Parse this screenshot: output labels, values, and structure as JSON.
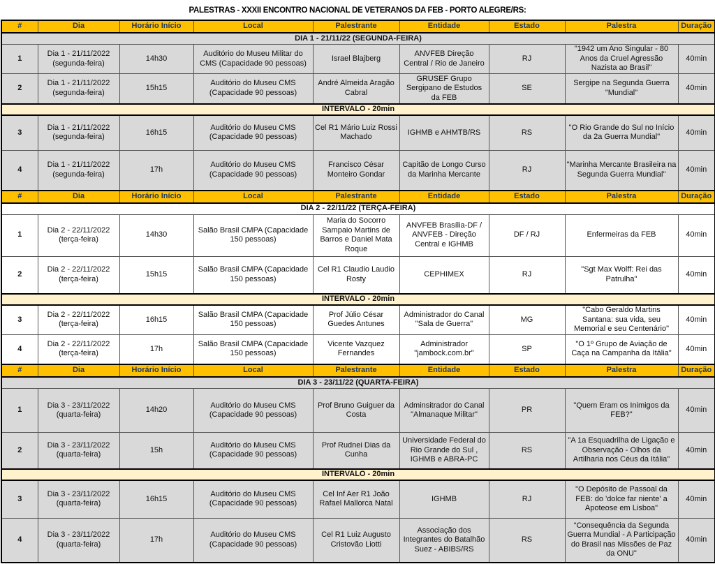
{
  "title": "PALESTRAS - XXXII ENCONTRO NACIONAL DE VETERANOS DA FEB - PORTO ALEGRE/RS:",
  "headers": [
    "#",
    "Dia",
    "Horário Início",
    "Local",
    "Palestrante",
    "Entidade",
    "Estado",
    "Palestra",
    "Duração"
  ],
  "interval_label": "INTERVALO - 20min",
  "colors": {
    "header_bg": "#ffc000",
    "header_text": "#1f3864",
    "interval_bg": "#fff2cc",
    "row_gray": "#d9d9d9"
  },
  "days": [
    {
      "label": "DIA 1 - 21/11/22 (SEGUNDA-FEIRA)",
      "shade": "gray",
      "rows": [
        [
          "1",
          "Dia 1 - 21/11/2022\n(segunda-feira)",
          "14h30",
          "Auditório do Museu Militar do CMS (Capacidade 90 pessoas)",
          "Israel Blajberg",
          "ANVFEB Direção Central / Rio de Janeiro",
          "RJ",
          "\"1942 um Ano Singular - 80 Anos da Cruel Agressão Nazista ao Brasil\"",
          "40min"
        ],
        [
          "2",
          "Dia 1 - 21/11/2022\n(segunda-feira)",
          "15h15",
          "Auditório do Museu CMS (Capacidade 90 pessoas)",
          "André Almeida Aragão Cabral",
          "GRUSEF Grupo Sergipano de Estudos da FEB",
          "SE",
          "Sergipe na Segunda Guerra \"Mundial\"",
          "40min"
        ],
        [
          "3",
          "Dia 1 - 21/11/2022\n(segunda-feira)",
          "16h15",
          "Auditório do Museu CMS (Capacidade 90 pessoas)",
          "Cel R1 Mário Luiz Rossi Machado",
          "IGHMB e AHMTB/RS",
          "RS",
          "\"O Rio Grande do Sul no Início da 2a Guerra Mundial\"",
          "40min"
        ],
        [
          "4",
          "Dia 1 - 21/11/2022\n(segunda-feira)",
          "17h",
          "Auditório do Museu CMS (Capacidade 90 pessoas)",
          "Francisco César Monteiro Gondar",
          "Capitão de Longo Curso da Marinha Mercante",
          "RJ",
          "\"Marinha Mercante Brasileira na Segunda Guerra Mundial\"",
          "40min"
        ]
      ]
    },
    {
      "label": "DIA 2 - 22/11/22 (TERÇA-FEIRA)",
      "shade": "white",
      "rows": [
        [
          "1",
          "Dia 2 - 22/11/2022\n(terça-feira)",
          "14h30",
          "Salão Brasil CMPA (Capacidade 150 pessoas)",
          "Maria do Socorro Sampaio Martins de Barros e Daniel Mata Roque",
          "ANVFEB Brasília-DF / ANVFEB - Direção Central e IGHMB",
          "DF / RJ",
          "Enfermeiras da FEB",
          "40min"
        ],
        [
          "2",
          "Dia 2 - 22/11/2022\n(terça-feira)",
          "15h15",
          "Salão Brasil CMPA (Capacidade 150 pessoas)",
          "Cel R1 Claudio Laudio Rosty",
          "CEPHIMEX",
          "RJ",
          "\"Sgt Max Wolff: Rei das Patrulha\"",
          "40min"
        ],
        [
          "3",
          "Dia 2 - 22/11/2022\n(terça-feira)",
          "16h15",
          "Salão Brasil CMPA (Capacidade 150 pessoas)",
          "Prof Júlio César Guedes Antunes",
          "Administrador do Canal \"Sala de Guerra\"",
          "MG",
          "\"Cabo Geraldo Martins Santana: sua vida, seu Memorial e seu Centenário\"",
          "40min"
        ],
        [
          "4",
          "Dia 2 - 22/11/2022\n(terça-feira)",
          "17h",
          "Salão Brasil CMPA (Capacidade 150 pessoas)",
          "Vicente Vazquez Fernandes",
          "Administrador \"jambock.com.br\"",
          "SP",
          "\"O 1º Grupo de Aviação de Caça na Campanha da Itália\"",
          "40min"
        ]
      ]
    },
    {
      "label": "DIA 3 - 23/11/22 (QUARTA-FEIRA)",
      "shade": "gray",
      "rows": [
        [
          "1",
          "Dia 3 - 23/11/2022\n(quarta-feira)",
          "14h20",
          "Auditório do Museu CMS (Capacidade 90 pessoas)",
          "Prof Bruno Guiguer da Costa",
          "Adminsitrador do Canal \"Almanaque Militar\"",
          "PR",
          "\"Quem Eram os Inimigos da FEB?\"",
          "40min"
        ],
        [
          "2",
          "Dia 3 - 23/11/2022\n(quarta-feira)",
          "15h",
          "Auditório do Museu CMS (Capacidade 90 pessoas)",
          "Prof Rudnei Dias da Cunha",
          "Universidade Federal do Rio Grande do Sul , IGHMB e ABRA-PC",
          "RS",
          "\"A 1a Esquadrilha de Ligação e Observação - Olhos da Artilharia nos Céus da Itália\"",
          "40min"
        ],
        [
          "3",
          "Dia 3 - 23/11/2022\n(quarta-feira)",
          "16h15",
          "Auditório do Museu CMS (Capacidade 90 pessoas)",
          "Cel Inf Aer R1 João Rafael Mallorca Natal",
          "IGHMB",
          "RJ",
          "\"O Depósito de Passoal da FEB: do 'dolce far niente'  a Apoteose em Lisboa\"",
          "40min"
        ],
        [
          "4",
          "Dia 3 - 23/11/2022\n(quarta-feira)",
          "17h",
          "Auditório do Museu CMS (Capacidade 90 pessoas)",
          "Cel R1 Luiz Augusto Cristovão Liotti",
          "Associação dos Integrantes do Batalhão Suez - ABIBS/RS",
          "RS",
          "“Consequência da Segunda Guerra Mundial - A Participação do Brasil nas Missões de Paz da ONU\"",
          "40min"
        ]
      ]
    }
  ]
}
